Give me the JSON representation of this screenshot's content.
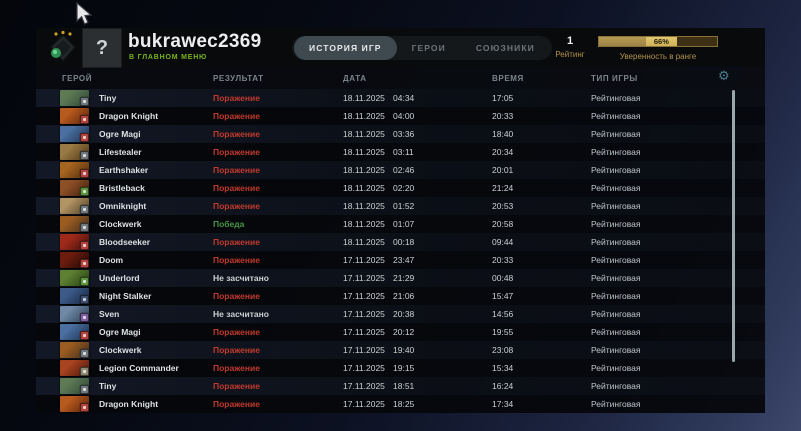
{
  "profile": {
    "name": "bukrawec2369",
    "status": "В ГЛАВНОМ МЕНЮ",
    "avatar_glyph": "?",
    "tabs": [
      {
        "label": "ИСТОРИЯ ИГР",
        "active": true
      },
      {
        "label": "ГЕРОИ",
        "active": false
      },
      {
        "label": "СОЮЗНИКИ",
        "active": false
      }
    ],
    "rating": {
      "value": "1",
      "label": "Рейтинг"
    },
    "confidence": {
      "percent": 66,
      "percent_label": "66%",
      "label": "Уверенность в ранге"
    }
  },
  "colors": {
    "loss": "#c13a2d",
    "win": "#469544",
    "not_scored": "#ccd1d5",
    "gold_accent": "#b3914a",
    "gear_accent": "#4e7e8e",
    "active_tab_bg": "#3e4950"
  },
  "table": {
    "columns": {
      "hero": "ГЕРОЙ",
      "result": "РЕЗУЛЬТАТ",
      "date": "ДАТА",
      "time": "ВРЕМЯ",
      "type": "ТИП ИГРЫ"
    },
    "gear_icon": "⚙",
    "rows": [
      {
        "hero": "Tiny",
        "result": "Поражение",
        "outcome": "loss",
        "date": "18.11.2025",
        "start": "04:34",
        "duration": "17:05",
        "type": "Рейтинговая",
        "portrait": [
          "#5d7a55",
          "#2c4534"
        ],
        "facet": "#70777d"
      },
      {
        "hero": "Dragon Knight",
        "result": "Поражение",
        "outcome": "loss",
        "date": "18.11.2025",
        "start": "04:00",
        "duration": "20:33",
        "type": "Рейтинговая",
        "portrait": [
          "#b85a1e",
          "#57220c"
        ],
        "facet": "#b2453f"
      },
      {
        "hero": "Ogre Magi",
        "result": "Поражение",
        "outcome": "loss",
        "date": "18.11.2025",
        "start": "03:36",
        "duration": "18:40",
        "type": "Рейтинговая",
        "portrait": [
          "#4a6fa0",
          "#1c3050"
        ],
        "facet": "#b2453f"
      },
      {
        "hero": "Lifestealer",
        "result": "Поражение",
        "outcome": "loss",
        "date": "18.11.2025",
        "start": "03:11",
        "duration": "20:34",
        "type": "Рейтинговая",
        "portrait": [
          "#9a7a44",
          "#4c3415"
        ],
        "facet": "#70777d"
      },
      {
        "hero": "Earthshaker",
        "result": "Поражение",
        "outcome": "loss",
        "date": "18.11.2025",
        "start": "02:46",
        "duration": "20:01",
        "type": "Рейтинговая",
        "portrait": [
          "#a5641f",
          "#4e2a0d"
        ],
        "facet": "#b2453f"
      },
      {
        "hero": "Bristleback",
        "result": "Поражение",
        "outcome": "loss",
        "date": "18.11.2025",
        "start": "02:20",
        "duration": "21:24",
        "type": "Рейтинговая",
        "portrait": [
          "#8d4f26",
          "#3f1f0d"
        ],
        "facet": "#5f9440"
      },
      {
        "hero": "Omniknight",
        "result": "Поражение",
        "outcome": "loss",
        "date": "18.11.2025",
        "start": "01:52",
        "duration": "20:53",
        "type": "Рейтинговая",
        "portrait": [
          "#b29464",
          "#4f3f24"
        ],
        "facet": "#70777d"
      },
      {
        "hero": "Clockwerk",
        "result": "Победа",
        "outcome": "win",
        "date": "18.11.2025",
        "start": "01:07",
        "duration": "20:58",
        "type": "Рейтинговая",
        "portrait": [
          "#9a5c20",
          "#3e2c1c"
        ],
        "facet": "#70777d"
      },
      {
        "hero": "Bloodseeker",
        "result": "Поражение",
        "outcome": "loss",
        "date": "18.11.2025",
        "start": "00:18",
        "duration": "09:44",
        "type": "Рейтинговая",
        "portrait": [
          "#a02a1a",
          "#40100a"
        ],
        "facet": "#b2453f"
      },
      {
        "hero": "Doom",
        "result": "Поражение",
        "outcome": "loss",
        "date": "17.11.2025",
        "start": "23:47",
        "duration": "20:33",
        "type": "Рейтинговая",
        "portrait": [
          "#6b1c0d",
          "#1e0705"
        ],
        "facet": "#b2453f"
      },
      {
        "hero": "Underlord",
        "result": "Не засчитано",
        "outcome": "none",
        "date": "17.11.2025",
        "start": "21:29",
        "duration": "00:48",
        "type": "Рейтинговая",
        "portrait": [
          "#5d8033",
          "#24400f"
        ],
        "facet": "#5f9440"
      },
      {
        "hero": "Night Stalker",
        "result": "Поражение",
        "outcome": "loss",
        "date": "17.11.2025",
        "start": "21:06",
        "duration": "15:47",
        "type": "Рейтинговая",
        "portrait": [
          "#3c5a88",
          "#142642"
        ],
        "facet": "#3e4e6e"
      },
      {
        "hero": "Sven",
        "result": "Не засчитано",
        "outcome": "none",
        "date": "17.11.2025",
        "start": "20:38",
        "duration": "14:56",
        "type": "Рейтинговая",
        "portrait": [
          "#6e88a5",
          "#2c3c52"
        ],
        "facet": "#7e5fa0"
      },
      {
        "hero": "Ogre Magi",
        "result": "Поражение",
        "outcome": "loss",
        "date": "17.11.2025",
        "start": "20:12",
        "duration": "19:55",
        "type": "Рейтинговая",
        "portrait": [
          "#4a6fa0",
          "#1c3050"
        ],
        "facet": "#b2453f"
      },
      {
        "hero": "Clockwerk",
        "result": "Поражение",
        "outcome": "loss",
        "date": "17.11.2025",
        "start": "19:40",
        "duration": "23:08",
        "type": "Рейтинговая",
        "portrait": [
          "#9a5c20",
          "#3e2c1c"
        ],
        "facet": "#70777d"
      },
      {
        "hero": "Legion Commander",
        "result": "Поражение",
        "outcome": "loss",
        "date": "17.11.2025",
        "start": "19:15",
        "duration": "15:34",
        "type": "Рейтинговая",
        "portrait": [
          "#a8431f",
          "#4a160b"
        ],
        "facet": "#8f8a76"
      },
      {
        "hero": "Tiny",
        "result": "Поражение",
        "outcome": "loss",
        "date": "17.11.2025",
        "start": "18:51",
        "duration": "16:24",
        "type": "Рейтинговая",
        "portrait": [
          "#5d7a55",
          "#2c4534"
        ],
        "facet": "#70777d"
      },
      {
        "hero": "Dragon Knight",
        "result": "Поражение",
        "outcome": "loss",
        "date": "17.11.2025",
        "start": "18:25",
        "duration": "17:34",
        "type": "Рейтинговая",
        "portrait": [
          "#b85a1e",
          "#57220c"
        ],
        "facet": "#b2453f"
      }
    ]
  }
}
